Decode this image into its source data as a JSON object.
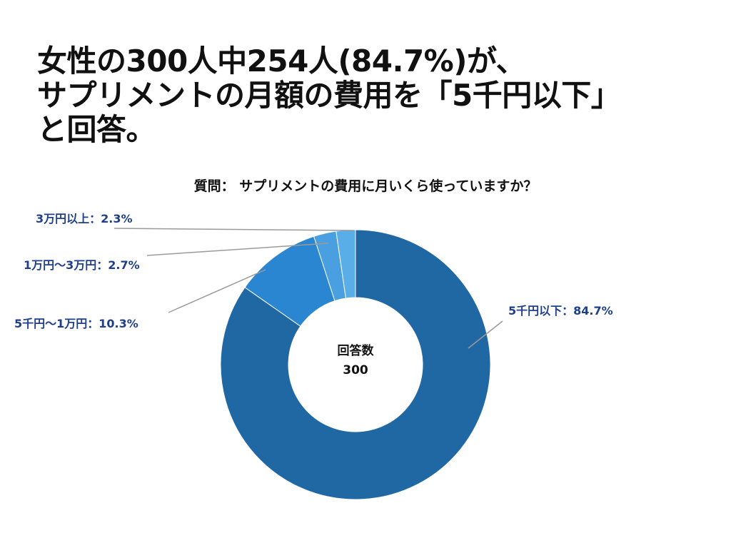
{
  "headline": {
    "line1": "女性の300人中254人(84.7%)が、",
    "line2": "サプリメントの月額の費用を「5千円以下」",
    "line3": "と回答。"
  },
  "question": "質問： サプリメントの費用に月いくら使っていますか？",
  "center": {
    "label": "回答数",
    "value": "300"
  },
  "chart_data": {
    "type": "pie",
    "donut": true,
    "title": "質問： サプリメントの費用に月いくら使っていますか？",
    "total_label": "回答数",
    "total": 300,
    "slices": [
      {
        "name": "5千円以下",
        "value": 84.7,
        "label": "5千円以下：84.7%",
        "color": "#2068a4"
      },
      {
        "name": "5千円〜1万円",
        "value": 10.3,
        "label": "5千円〜1万円：10.3%",
        "color": "#2a86d0"
      },
      {
        "name": "1万円〜3万円",
        "value": 2.7,
        "label": "1万円〜3万円：2.7%",
        "color": "#4a9fe0"
      },
      {
        "name": "3万円以上",
        "value": 2.3,
        "label": "3万円以上：2.3%",
        "color": "#5aaee8"
      }
    ]
  },
  "colors": {
    "label_text": "#1f3f8a",
    "leader_line": "#9a9a9a"
  }
}
